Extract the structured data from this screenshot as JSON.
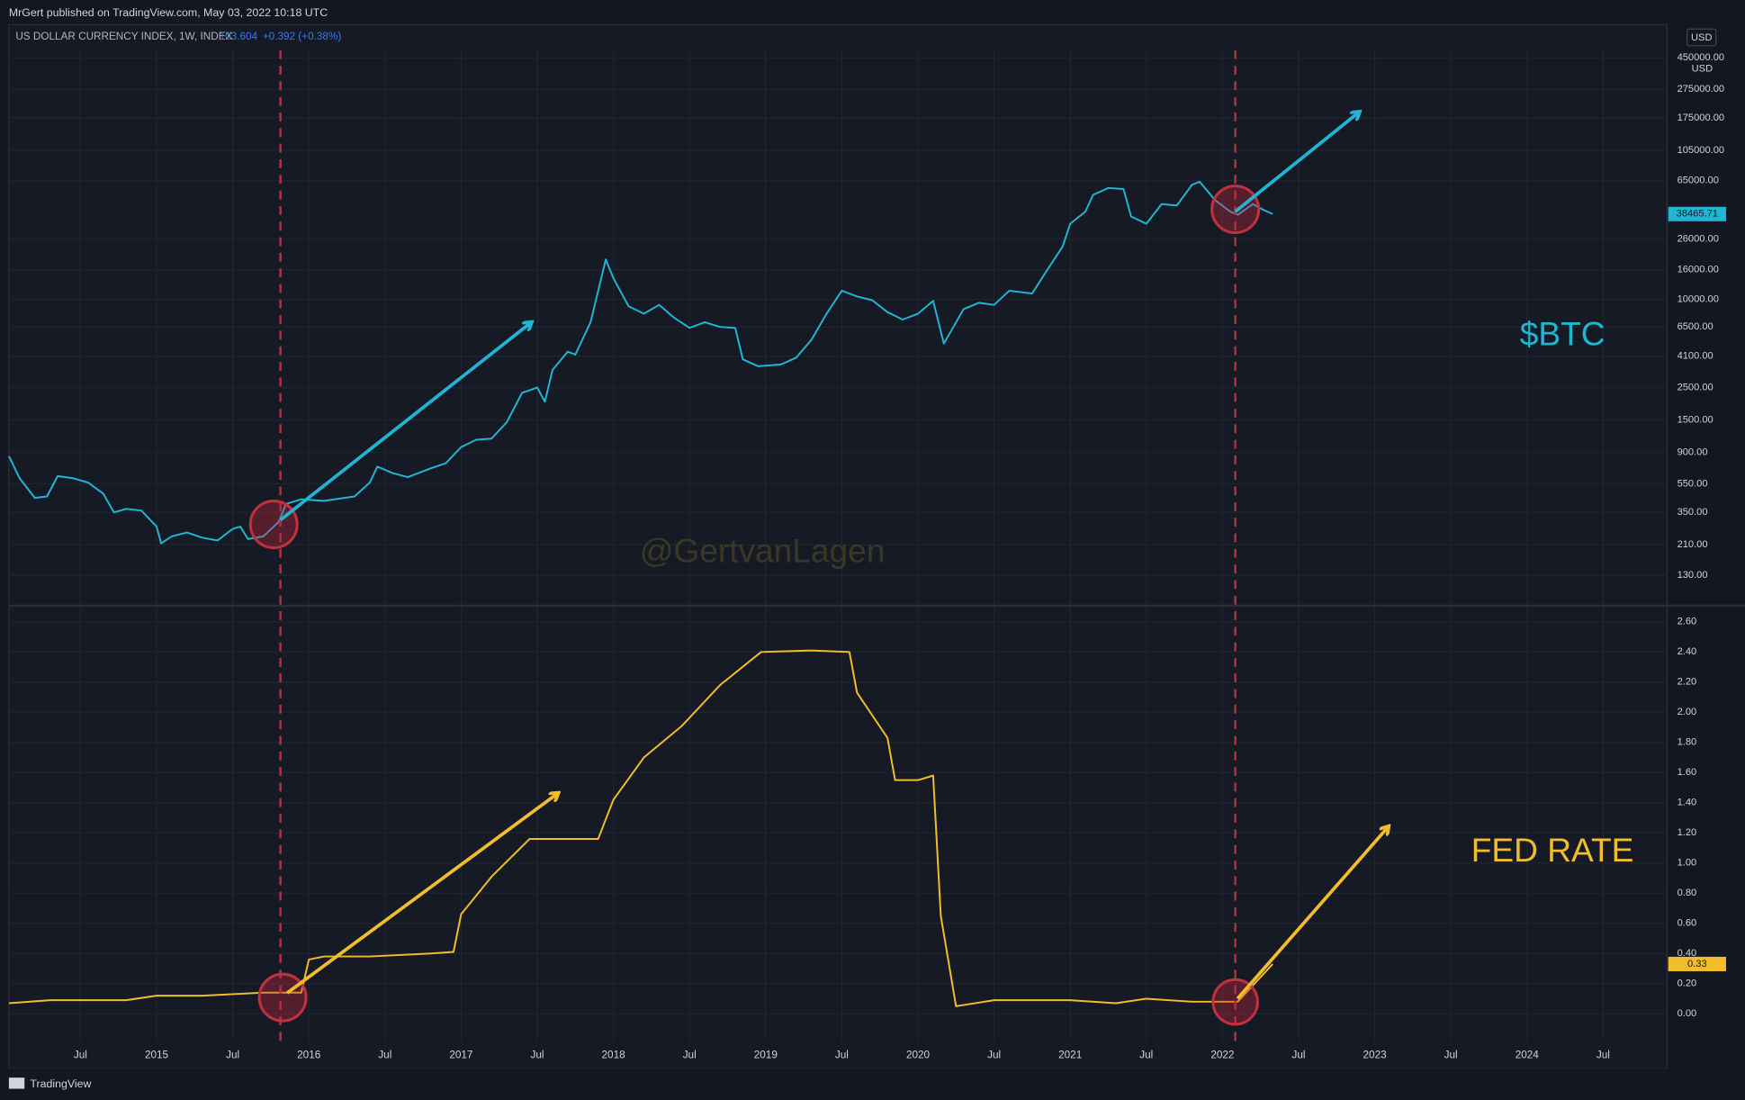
{
  "header": {
    "publisher": "MrGert published on TradingView.com, May 03, 2022 10:18 UTC",
    "symbol": "US DOLLAR CURRENCY INDEX, 1W, INDEX",
    "price": "103.604",
    "change": "+0.392 (+0.38%)",
    "currency": "USD"
  },
  "watermark": "@GertvanLagen",
  "footer": "TradingView",
  "chart_data": [
    {
      "type": "line",
      "annotation": "$BTC",
      "color": "#22b5d3",
      "log_scale": true,
      "grid": true,
      "unit": "USD",
      "xlim": [
        2014.03,
        2024.92
      ],
      "ylim": [
        82,
        508000
      ],
      "yticks": [
        {
          "value": 130,
          "label": "130.00"
        },
        {
          "value": 210,
          "label": "210.00"
        },
        {
          "value": 350,
          "label": "350.00"
        },
        {
          "value": 550,
          "label": "550.00"
        },
        {
          "value": 900,
          "label": "900.00"
        },
        {
          "value": 1500,
          "label": "1500.00"
        },
        {
          "value": 2500,
          "label": "2500.00"
        },
        {
          "value": 4100,
          "label": "4100.00"
        },
        {
          "value": 6500,
          "label": "6500.00"
        },
        {
          "value": 10000,
          "label": "10000.00"
        },
        {
          "value": 16000,
          "label": "16000.00"
        },
        {
          "value": 26000,
          "label": "26000.00"
        },
        {
          "value": 65000,
          "label": "65000.00"
        },
        {
          "value": 105000,
          "label": "105000.00"
        },
        {
          "value": 175000,
          "label": "175000.00"
        },
        {
          "value": 275000,
          "label": "275000.00"
        },
        {
          "value": 450000,
          "label": "450000.00"
        }
      ],
      "x": [
        2014.03,
        2014.1,
        2014.2,
        2014.28,
        2014.35,
        2014.45,
        2014.55,
        2014.65,
        2014.72,
        2014.8,
        2014.9,
        2015.0,
        2015.03,
        2015.1,
        2015.2,
        2015.3,
        2015.4,
        2015.5,
        2015.55,
        2015.6,
        2015.7,
        2015.8,
        2015.85,
        2015.95,
        2016.1,
        2016.3,
        2016.4,
        2016.45,
        2016.55,
        2016.65,
        2016.8,
        2016.9,
        2017.0,
        2017.1,
        2017.2,
        2017.3,
        2017.4,
        2017.5,
        2017.55,
        2017.6,
        2017.7,
        2017.75,
        2017.85,
        2017.95,
        2018.0,
        2018.1,
        2018.2,
        2018.3,
        2018.4,
        2018.5,
        2018.6,
        2018.7,
        2018.8,
        2018.85,
        2018.95,
        2019.1,
        2019.2,
        2019.3,
        2019.4,
        2019.5,
        2019.6,
        2019.7,
        2019.8,
        2019.9,
        2020.0,
        2020.1,
        2020.17,
        2020.3,
        2020.4,
        2020.5,
        2020.6,
        2020.75,
        2020.85,
        2020.95,
        2021.0,
        2021.1,
        2021.15,
        2021.25,
        2021.35,
        2021.4,
        2021.5,
        2021.6,
        2021.7,
        2021.8,
        2021.85,
        2021.95,
        2022.05,
        2022.1,
        2022.2,
        2022.27,
        2022.33
      ],
      "values": [
        850,
        600,
        440,
        450,
        620,
        600,
        560,
        470,
        350,
        370,
        360,
        280,
        215,
        240,
        255,
        235,
        225,
        270,
        280,
        230,
        240,
        300,
        400,
        430,
        420,
        450,
        560,
        720,
        650,
        610,
        700,
        760,
        980,
        1100,
        1120,
        1450,
        2300,
        2500,
        2000,
        3300,
        4400,
        4200,
        7000,
        18800,
        14000,
        9000,
        8000,
        9200,
        7500,
        6400,
        7000,
        6500,
        6400,
        3900,
        3500,
        3600,
        4000,
        5300,
        8000,
        11500,
        10500,
        9900,
        8200,
        7300,
        8000,
        9800,
        5000,
        8600,
        9500,
        9200,
        11500,
        11000,
        16000,
        23000,
        33000,
        40000,
        52000,
        58000,
        57000,
        37000,
        33000,
        45000,
        44000,
        61000,
        64000,
        48000,
        40000,
        38000,
        45000,
        41000,
        38465.71
      ]
    },
    {
      "type": "line",
      "annotation": "FED RATE",
      "color": "#f2bd2c",
      "log_scale": false,
      "grid": true,
      "xlim": [
        2014.03,
        2024.92
      ],
      "ylim": [
        -0.18,
        2.7
      ],
      "xticks": [
        {
          "value": 2014.5,
          "label": "Jul"
        },
        2015,
        {
          "value": 2015.5,
          "label": "Jul"
        },
        2016,
        {
          "value": 2016.5,
          "label": "Jul"
        },
        2017,
        {
          "value": 2017.5,
          "label": "Jul"
        },
        2018,
        {
          "value": 2018.5,
          "label": "Jul"
        },
        2019,
        {
          "value": 2019.5,
          "label": "Jul"
        },
        2020,
        {
          "value": 2020.5,
          "label": "Jul"
        },
        2021,
        {
          "value": 2021.5,
          "label": "Jul"
        },
        2022,
        {
          "value": 2022.5,
          "label": "Jul"
        },
        2023,
        {
          "value": 2023.5,
          "label": "Jul"
        },
        2024,
        {
          "value": 2024.5,
          "label": "Jul"
        }
      ],
      "yticks": [
        {
          "value": 0,
          "label": "0.00"
        },
        {
          "value": 0.2,
          "label": "0.20"
        },
        {
          "value": 0.4,
          "label": "0.40"
        },
        {
          "value": 0.6,
          "label": "0.60"
        },
        {
          "value": 0.8,
          "label": "0.80"
        },
        {
          "value": 1,
          "label": "1.00"
        },
        {
          "value": 1.2,
          "label": "1.20"
        },
        {
          "value": 1.4,
          "label": "1.40"
        },
        {
          "value": 1.6,
          "label": "1.60"
        },
        {
          "value": 1.8,
          "label": "1.80"
        },
        {
          "value": 2,
          "label": "2.00"
        },
        {
          "value": 2.2,
          "label": "2.20"
        },
        {
          "value": 2.4,
          "label": "2.40"
        },
        {
          "value": 2.6,
          "label": "2.60"
        }
      ],
      "x": [
        2014.03,
        2014.3,
        2014.5,
        2014.8,
        2015.0,
        2015.3,
        2015.5,
        2015.7,
        2015.95,
        2016.0,
        2016.1,
        2016.4,
        2016.8,
        2016.95,
        2017.0,
        2017.2,
        2017.45,
        2017.9,
        2018.0,
        2018.2,
        2018.45,
        2018.7,
        2018.97,
        2019.3,
        2019.55,
        2019.6,
        2019.8,
        2019.85,
        2020.0,
        2020.1,
        2020.15,
        2020.25,
        2020.5,
        2021.0,
        2021.3,
        2021.5,
        2021.8,
        2022.1,
        2022.33
      ],
      "values": [
        0.07,
        0.09,
        0.09,
        0.09,
        0.12,
        0.12,
        0.13,
        0.14,
        0.14,
        0.36,
        0.38,
        0.38,
        0.4,
        0.41,
        0.66,
        0.91,
        1.16,
        1.16,
        1.42,
        1.7,
        1.91,
        2.18,
        2.4,
        2.41,
        2.4,
        2.13,
        1.83,
        1.55,
        1.55,
        1.58,
        0.65,
        0.05,
        0.09,
        0.09,
        0.07,
        0.1,
        0.08,
        0.08,
        0.33
      ]
    }
  ]
}
